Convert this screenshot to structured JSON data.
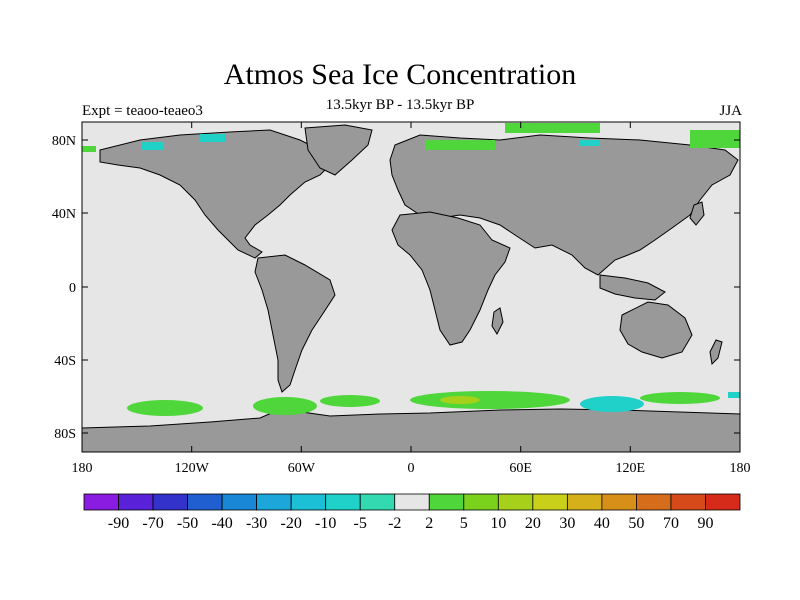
{
  "title": "Atmos Sea Ice Concentration",
  "subtitle": "13.5kyr BP - 13.5kyr BP",
  "left_label": "Expt = teaoo-teaeo3",
  "right_label": "JJA",
  "axes": {
    "x_ticks": [
      "180",
      "120W",
      "60W",
      "0",
      "60E",
      "120E",
      "180"
    ],
    "y_ticks": [
      "80N",
      "40N",
      "0",
      "40S",
      "80S"
    ]
  },
  "colors": {
    "land": "#999999",
    "ocean": "#e6e6e6",
    "coast": "#000000"
  },
  "colorbar": {
    "labels": [
      "-90",
      "-70",
      "-50",
      "-40",
      "-30",
      "-20",
      "-10",
      "-5",
      "-2",
      "2",
      "5",
      "10",
      "20",
      "30",
      "40",
      "50",
      "70",
      "90"
    ],
    "colors": [
      "#8a1be0",
      "#5a22d8",
      "#3333cc",
      "#1f5fd0",
      "#1a86d6",
      "#1ca6da",
      "#1bbfd6",
      "#1fd1c8",
      "#33d9b0",
      "#e6e6e6",
      "#4fd63a",
      "#7ad21d",
      "#a6d01a",
      "#c8d01a",
      "#d6b01a",
      "#d6901a",
      "#d66d1a",
      "#d64a1a",
      "#d62a1a"
    ]
  }
}
